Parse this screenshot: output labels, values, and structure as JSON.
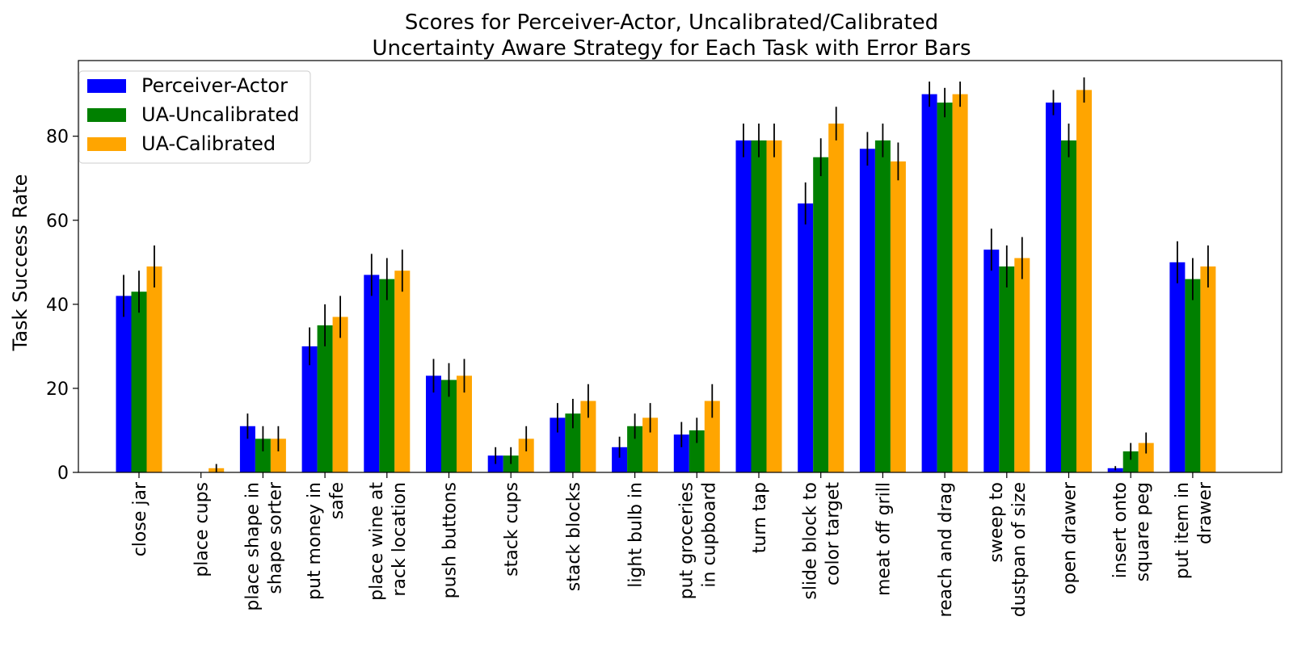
{
  "chart_data": {
    "type": "bar",
    "title_lines": [
      "Scores for Perceiver-Actor, Uncalibrated/Calibrated",
      "Uncertainty Aware Strategy for Each Task with Error Bars"
    ],
    "ylabel": "Task Success Rate",
    "ylim": [
      0,
      98
    ],
    "yticks": [
      0,
      20,
      40,
      60,
      80
    ],
    "legend_position": "top-left",
    "categories": [
      [
        "close jar"
      ],
      [
        "place cups"
      ],
      [
        "place shape in",
        "shape sorter"
      ],
      [
        "put money in",
        "safe"
      ],
      [
        "place wine at",
        "rack location"
      ],
      [
        "push buttons"
      ],
      [
        "stack cups"
      ],
      [
        "stack blocks"
      ],
      [
        "light bulb in"
      ],
      [
        "put groceries",
        "in cupboard"
      ],
      [
        "turn tap"
      ],
      [
        "slide block to",
        "color target"
      ],
      [
        "meat off grill"
      ],
      [
        "reach and drag"
      ],
      [
        "sweep to",
        "dustpan of size"
      ],
      [
        "open drawer"
      ],
      [
        "insert onto",
        "square peg"
      ],
      [
        "put item in",
        "drawer"
      ]
    ],
    "series": [
      {
        "name": "Perceiver-Actor",
        "color": "#0000ff",
        "values": [
          42,
          0,
          11,
          30,
          47,
          23,
          4,
          13,
          6,
          9,
          79,
          64,
          77,
          90,
          53,
          88,
          1,
          50
        ],
        "errors": [
          5,
          0,
          3,
          4.5,
          5,
          4,
          2,
          3.5,
          2.5,
          3,
          4,
          5,
          4,
          3,
          5,
          3,
          0.5,
          5
        ]
      },
      {
        "name": "UA-Uncalibrated",
        "color": "#008000",
        "values": [
          43,
          0,
          8,
          35,
          46,
          22,
          4,
          14,
          11,
          10,
          79,
          75,
          79,
          88,
          49,
          79,
          5,
          46
        ],
        "errors": [
          5,
          0,
          3,
          5,
          5,
          4,
          2,
          3.5,
          3,
          3,
          4,
          4.5,
          4,
          3.5,
          5,
          4,
          2,
          5
        ]
      },
      {
        "name": "UA-Calibrated",
        "color": "#ffa500",
        "values": [
          49,
          1,
          8,
          37,
          48,
          23,
          8,
          17,
          13,
          17,
          79,
          83,
          74,
          90,
          51,
          91,
          7,
          49
        ],
        "errors": [
          5,
          1,
          3,
          5,
          5,
          4,
          3,
          4,
          3.5,
          4,
          4,
          4,
          4.5,
          3,
          5,
          3,
          2.5,
          5
        ]
      }
    ]
  }
}
